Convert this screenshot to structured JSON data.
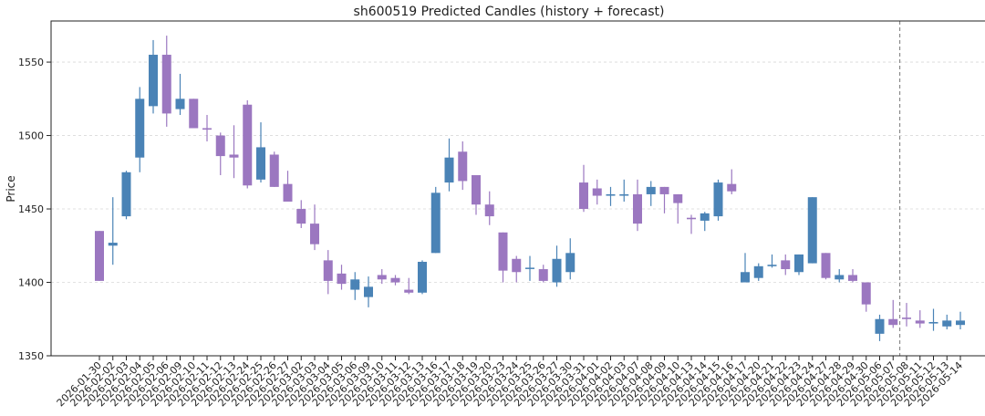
{
  "chart_data": {
    "type": "candlestick",
    "title": "sh600519 Predicted Candles (history + forecast)",
    "ylabel": "Price",
    "xlabel": "",
    "ylim": [
      1350,
      1578
    ],
    "yticks": [
      1350,
      1400,
      1450,
      1500,
      1550
    ],
    "grid": true,
    "forecast_start_index": 60,
    "colors": {
      "up": "#4a83b6",
      "down": "#9b77c0",
      "forecast_line": "#777777"
    },
    "candles": [
      {
        "date": "2026-01-30",
        "open": 1435,
        "close": 1401,
        "high": 1435,
        "low": 1401
      },
      {
        "date": "2026-02-02",
        "open": 1425,
        "close": 1427,
        "high": 1458,
        "low": 1412
      },
      {
        "date": "2026-02-03",
        "open": 1445,
        "close": 1475,
        "high": 1476,
        "low": 1443
      },
      {
        "date": "2026-02-04",
        "open": 1485,
        "close": 1525,
        "high": 1533,
        "low": 1475
      },
      {
        "date": "2026-02-05",
        "open": 1520,
        "close": 1555,
        "high": 1565,
        "low": 1515
      },
      {
        "date": "2026-02-06",
        "open": 1555,
        "close": 1515,
        "high": 1568,
        "low": 1506
      },
      {
        "date": "2026-02-09",
        "open": 1518,
        "close": 1525,
        "high": 1542,
        "low": 1514
      },
      {
        "date": "2026-02-10",
        "open": 1525,
        "close": 1505,
        "high": 1525,
        "low": 1505
      },
      {
        "date": "2026-02-11",
        "open": 1505,
        "close": 1504,
        "high": 1514,
        "low": 1496
      },
      {
        "date": "2026-02-12",
        "open": 1500,
        "close": 1486,
        "high": 1502,
        "low": 1473
      },
      {
        "date": "2026-02-13",
        "open": 1487,
        "close": 1485,
        "high": 1507,
        "low": 1471
      },
      {
        "date": "2026-02-24",
        "open": 1521,
        "close": 1466,
        "high": 1524,
        "low": 1464
      },
      {
        "date": "2026-02-25",
        "open": 1470,
        "close": 1492,
        "high": 1509,
        "low": 1468
      },
      {
        "date": "2026-02-26",
        "open": 1487,
        "close": 1465,
        "high": 1489,
        "low": 1465
      },
      {
        "date": "2026-02-27",
        "open": 1467,
        "close": 1455,
        "high": 1476,
        "low": 1455
      },
      {
        "date": "2026-03-02",
        "open": 1450,
        "close": 1440,
        "high": 1456,
        "low": 1437
      },
      {
        "date": "2026-03-03",
        "open": 1440,
        "close": 1426,
        "high": 1453,
        "low": 1422
      },
      {
        "date": "2026-03-04",
        "open": 1415,
        "close": 1401,
        "high": 1422,
        "low": 1392
      },
      {
        "date": "2026-03-05",
        "open": 1406,
        "close": 1399,
        "high": 1412,
        "low": 1395
      },
      {
        "date": "2026-03-06",
        "open": 1395,
        "close": 1402,
        "high": 1407,
        "low": 1388
      },
      {
        "date": "2026-03-09",
        "open": 1390,
        "close": 1397,
        "high": 1404,
        "low": 1383
      },
      {
        "date": "2026-03-10",
        "open": 1405,
        "close": 1402,
        "high": 1409,
        "low": 1399
      },
      {
        "date": "2026-03-11",
        "open": 1403,
        "close": 1400,
        "high": 1405,
        "low": 1398
      },
      {
        "date": "2026-03-12",
        "open": 1395,
        "close": 1393,
        "high": 1403,
        "low": 1392
      },
      {
        "date": "2026-03-13",
        "open": 1393,
        "close": 1414,
        "high": 1415,
        "low": 1392
      },
      {
        "date": "2026-03-16",
        "open": 1420,
        "close": 1461,
        "high": 1465,
        "low": 1420
      },
      {
        "date": "2026-03-17",
        "open": 1468,
        "close": 1485,
        "high": 1498,
        "low": 1462
      },
      {
        "date": "2026-03-18",
        "open": 1489,
        "close": 1469,
        "high": 1496,
        "low": 1463
      },
      {
        "date": "2026-03-19",
        "open": 1473,
        "close": 1453,
        "high": 1473,
        "low": 1446
      },
      {
        "date": "2026-03-20",
        "open": 1453,
        "close": 1445,
        "high": 1462,
        "low": 1439
      },
      {
        "date": "2026-03-23",
        "open": 1434,
        "close": 1408,
        "high": 1434,
        "low": 1400
      },
      {
        "date": "2026-03-24",
        "open": 1416,
        "close": 1407,
        "high": 1418,
        "low": 1400
      },
      {
        "date": "2026-03-25",
        "open": 1410,
        "close": 1410,
        "high": 1418,
        "low": 1401
      },
      {
        "date": "2026-03-26",
        "open": 1409,
        "close": 1401,
        "high": 1412,
        "low": 1400
      },
      {
        "date": "2026-03-27",
        "open": 1400,
        "close": 1416,
        "high": 1425,
        "low": 1397
      },
      {
        "date": "2026-03-30",
        "open": 1407,
        "close": 1420,
        "high": 1430,
        "low": 1402
      },
      {
        "date": "2026-03-31",
        "open": 1468,
        "close": 1450,
        "high": 1480,
        "low": 1448
      },
      {
        "date": "2026-04-01",
        "open": 1464,
        "close": 1459,
        "high": 1470,
        "low": 1453
      },
      {
        "date": "2026-04-02",
        "open": 1459,
        "close": 1460,
        "high": 1465,
        "low": 1452
      },
      {
        "date": "2026-04-03",
        "open": 1459,
        "close": 1460,
        "high": 1470,
        "low": 1455
      },
      {
        "date": "2026-04-07",
        "open": 1460,
        "close": 1440,
        "high": 1470,
        "low": 1435
      },
      {
        "date": "2026-04-08",
        "open": 1460,
        "close": 1465,
        "high": 1469,
        "low": 1452
      },
      {
        "date": "2026-04-09",
        "open": 1465,
        "close": 1460,
        "high": 1465,
        "low": 1447
      },
      {
        "date": "2026-04-10",
        "open": 1460,
        "close": 1454,
        "high": 1460,
        "low": 1440
      },
      {
        "date": "2026-04-13",
        "open": 1444,
        "close": 1443,
        "high": 1446,
        "low": 1433
      },
      {
        "date": "2026-04-14",
        "open": 1442,
        "close": 1447,
        "high": 1448,
        "low": 1435
      },
      {
        "date": "2026-04-15",
        "open": 1445,
        "close": 1468,
        "high": 1470,
        "low": 1442
      },
      {
        "date": "2026-04-16",
        "open": 1467,
        "close": 1462,
        "high": 1477,
        "low": 1460
      },
      {
        "date": "2026-04-17",
        "open": 1400,
        "close": 1407,
        "high": 1420,
        "low": 1400
      },
      {
        "date": "2026-04-20",
        "open": 1403,
        "close": 1411,
        "high": 1413,
        "low": 1401
      },
      {
        "date": "2026-04-21",
        "open": 1411,
        "close": 1412,
        "high": 1419,
        "low": 1410
      },
      {
        "date": "2026-04-22",
        "open": 1415,
        "close": 1409,
        "high": 1419,
        "low": 1405
      },
      {
        "date": "2026-04-23",
        "open": 1407,
        "close": 1419,
        "high": 1419,
        "low": 1405
      },
      {
        "date": "2026-04-24",
        "open": 1413,
        "close": 1458,
        "high": 1458,
        "low": 1413
      },
      {
        "date": "2026-04-27",
        "open": 1420,
        "close": 1403,
        "high": 1420,
        "low": 1402
      },
      {
        "date": "2026-04-28",
        "open": 1402,
        "close": 1405,
        "high": 1409,
        "low": 1400
      },
      {
        "date": "2026-04-29",
        "open": 1405,
        "close": 1401,
        "high": 1409,
        "low": 1400
      },
      {
        "date": "2026-04-30",
        "open": 1400,
        "close": 1385,
        "high": 1400,
        "low": 1380
      },
      {
        "date": "2026-05-06",
        "open": 1365,
        "close": 1375,
        "high": 1378,
        "low": 1360
      },
      {
        "date": "2026-05-07",
        "open": 1375,
        "close": 1371,
        "high": 1388,
        "low": 1369
      },
      {
        "date": "2026-05-08",
        "open": 1376,
        "close": 1375,
        "high": 1386,
        "low": 1370
      },
      {
        "date": "2026-05-11",
        "open": 1374,
        "close": 1372,
        "high": 1381,
        "low": 1369
      },
      {
        "date": "2026-05-12",
        "open": 1372,
        "close": 1373,
        "high": 1382,
        "low": 1367
      },
      {
        "date": "2026-05-13",
        "open": 1370,
        "close": 1374,
        "high": 1378,
        "low": 1368
      },
      {
        "date": "2026-05-14",
        "open": 1371,
        "close": 1374,
        "high": 1380,
        "low": 1368
      }
    ]
  }
}
